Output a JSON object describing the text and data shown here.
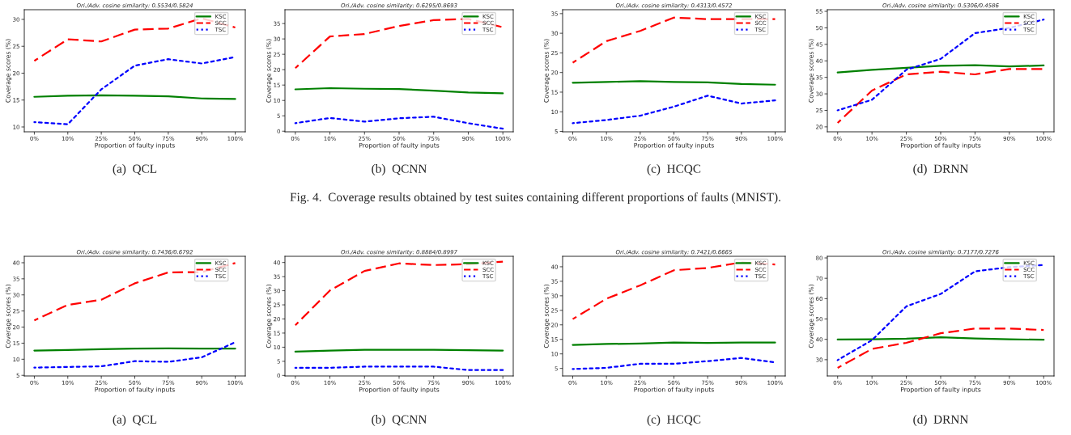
{
  "chart_data": [
    {
      "type": "line",
      "title": "Ori./Adv. cosine similarity: 0.5534/0.5824",
      "xlabel": "Proportion of faulty inputs",
      "ylabel": "Coverage scores (%)",
      "categories": [
        "0%",
        "10%",
        "25%",
        "50%",
        "75%",
        "90%",
        "100%"
      ],
      "ylim": [
        9.1,
        31.8
      ],
      "yticks": [
        10,
        15,
        20,
        25,
        30
      ],
      "legend": "top right",
      "grid": false,
      "annotations": [
        "(a)  QCL"
      ],
      "series": [
        {
          "name": "KSC",
          "color": "#008000",
          "line_style": "solid",
          "values": [
            15.6,
            15.8,
            15.9,
            15.8,
            15.7,
            15.3,
            15.2
          ]
        },
        {
          "name": "SCC",
          "color": "#ff0000",
          "line_style": "dashed",
          "values": [
            22.3,
            26.3,
            25.9,
            28.1,
            28.3,
            30.2,
            28.5
          ]
        },
        {
          "name": "TSC",
          "color": "#0000ff",
          "line_style": "dotted",
          "values": [
            10.9,
            10.5,
            17.0,
            21.4,
            22.6,
            21.8,
            23.0
          ]
        }
      ]
    },
    {
      "type": "line",
      "title": "Ori./Adv. cosine similarity: 0.6295/0.8693",
      "xlabel": "Proportion of faulty inputs",
      "ylabel": "Coverage scores (%)",
      "categories": [
        "0%",
        "10%",
        "25%",
        "50%",
        "75%",
        "90%",
        "100%"
      ],
      "ylim": [
        -0.2,
        39.5
      ],
      "yticks": [
        0,
        5,
        10,
        15,
        20,
        25,
        30,
        35
      ],
      "legend": "top right",
      "grid": false,
      "annotations": [
        "(b)  QCNN"
      ],
      "series": [
        {
          "name": "KSC",
          "color": "#008000",
          "line_style": "solid",
          "values": [
            13.6,
            14.0,
            13.8,
            13.7,
            13.2,
            12.6,
            12.3
          ]
        },
        {
          "name": "SCC",
          "color": "#ff0000",
          "line_style": "dashed",
          "values": [
            20.5,
            30.8,
            31.6,
            34.2,
            36.1,
            36.5,
            33.8
          ]
        },
        {
          "name": "TSC",
          "color": "#0000ff",
          "line_style": "dotted",
          "values": [
            2.6,
            4.3,
            3.1,
            4.2,
            4.7,
            2.6,
            0.8
          ]
        }
      ]
    },
    {
      "type": "line",
      "title": "Ori./Adv. cosine similarity: 0.4313/0.4572",
      "xlabel": "Proportion of faulty inputs",
      "ylabel": "Coverage scores (%)",
      "categories": [
        "0%",
        "10%",
        "25%",
        "50%",
        "75%",
        "90%",
        "100%"
      ],
      "ylim": [
        4.9,
        36.0
      ],
      "yticks": [
        5,
        10,
        15,
        20,
        25,
        30,
        35
      ],
      "legend": "top right",
      "grid": false,
      "annotations": [
        "(c)  HCQC"
      ],
      "series": [
        {
          "name": "KSC",
          "color": "#008000",
          "line_style": "solid",
          "values": [
            17.4,
            17.6,
            17.8,
            17.6,
            17.5,
            17.1,
            16.9
          ]
        },
        {
          "name": "SCC",
          "color": "#ff0000",
          "line_style": "dashed",
          "values": [
            22.5,
            28.0,
            30.6,
            34.0,
            33.6,
            33.6,
            33.6
          ]
        },
        {
          "name": "TSC",
          "color": "#0000ff",
          "line_style": "dotted",
          "values": [
            7.1,
            7.9,
            9.0,
            11.3,
            14.1,
            12.1,
            12.9
          ]
        }
      ]
    },
    {
      "type": "line",
      "title": "Ori./Adv. cosine similarity: 0.5306/0.4586",
      "xlabel": "Proportion of faulty inputs",
      "ylabel": "Coverage scores (%)",
      "categories": [
        "0%",
        "10%",
        "25%",
        "50%",
        "75%",
        "90%",
        "100%"
      ],
      "ylim": [
        18.5,
        55.5
      ],
      "yticks": [
        20,
        25,
        30,
        35,
        40,
        45,
        50,
        55
      ],
      "legend": "top right",
      "grid": false,
      "annotations": [
        "(d)  DRNN",
        "Fig. 4.  Coverage results obtained by test suites containing different proportions of faults (MNIST)."
      ],
      "series": [
        {
          "name": "KSC",
          "color": "#008000",
          "line_style": "solid",
          "values": [
            36.5,
            37.3,
            37.9,
            38.5,
            38.7,
            38.3,
            38.6
          ]
        },
        {
          "name": "SCC",
          "color": "#ff0000",
          "line_style": "dashed",
          "values": [
            21.2,
            31.0,
            35.9,
            36.7,
            35.9,
            37.5,
            37.5
          ]
        },
        {
          "name": "TSC",
          "color": "#0000ff",
          "line_style": "dotted",
          "values": [
            25.0,
            28.2,
            37.3,
            40.6,
            48.4,
            50.0,
            52.5
          ]
        }
      ]
    },
    {
      "type": "line",
      "title": "Ori./Adv. cosine similarity: 0.7436/0.6792",
      "xlabel": "Proportion of faulty inputs",
      "ylabel": "Coverage scores (%)",
      "categories": [
        "0%",
        "10%",
        "25%",
        "50%",
        "75%",
        "90%",
        "100%"
      ],
      "ylim": [
        4.8,
        42.0
      ],
      "yticks": [
        5,
        10,
        15,
        20,
        25,
        30,
        35,
        40
      ],
      "legend": "top right",
      "grid": false,
      "annotations": [
        "(a)  QCL"
      ],
      "series": [
        {
          "name": "KSC",
          "color": "#008000",
          "line_style": "solid",
          "values": [
            12.7,
            12.9,
            13.1,
            13.3,
            13.4,
            13.3,
            13.3
          ]
        },
        {
          "name": "SCC",
          "color": "#ff0000",
          "line_style": "dashed",
          "values": [
            22.1,
            26.9,
            28.5,
            33.6,
            37.0,
            37.1,
            39.9
          ]
        },
        {
          "name": "TSC",
          "color": "#0000ff",
          "line_style": "dotted",
          "values": [
            7.4,
            7.6,
            7.8,
            9.4,
            9.2,
            10.6,
            15.3
          ]
        }
      ]
    },
    {
      "type": "line",
      "title": "Ori./Adv. cosine similarity: 0.8884/0.8997",
      "xlabel": "Proportion of faulty inputs",
      "ylabel": "Coverage scores (%)",
      "categories": [
        "0%",
        "10%",
        "25%",
        "50%",
        "75%",
        "90%",
        "100%"
      ],
      "ylim": [
        -0.2,
        42.2
      ],
      "yticks": [
        0,
        5,
        10,
        15,
        20,
        25,
        30,
        35,
        40
      ],
      "legend": "top right",
      "grid": false,
      "annotations": [
        "(b)  QCNN"
      ],
      "series": [
        {
          "name": "KSC",
          "color": "#008000",
          "line_style": "solid",
          "values": [
            8.4,
            8.8,
            9.1,
            9.1,
            9.1,
            8.9,
            8.8
          ]
        },
        {
          "name": "SCC",
          "color": "#ff0000",
          "line_style": "dashed",
          "values": [
            17.8,
            30.1,
            37.0,
            39.7,
            39.1,
            39.4,
            40.3
          ]
        },
        {
          "name": "TSC",
          "color": "#0000ff",
          "line_style": "dotted",
          "values": [
            2.7,
            2.7,
            3.1,
            3.1,
            3.1,
            1.9,
            1.9
          ]
        }
      ]
    },
    {
      "type": "line",
      "title": "Ori./Adv. cosine similarity: 0.7421/0.6665",
      "xlabel": "Proportion of faulty inputs",
      "ylabel": "Coverage scores (%)",
      "categories": [
        "0%",
        "10%",
        "25%",
        "50%",
        "75%",
        "90%",
        "100%"
      ],
      "ylim": [
        2.4,
        43.6
      ],
      "yticks": [
        5,
        10,
        15,
        20,
        25,
        30,
        35,
        40
      ],
      "legend": "top right",
      "grid": false,
      "annotations": [
        "(c)  HCQC"
      ],
      "series": [
        {
          "name": "KSC",
          "color": "#008000",
          "line_style": "solid",
          "values": [
            13.1,
            13.4,
            13.6,
            13.9,
            13.8,
            13.9,
            13.9
          ]
        },
        {
          "name": "SCC",
          "color": "#ff0000",
          "line_style": "dashed",
          "values": [
            22.0,
            29.0,
            33.6,
            38.8,
            39.6,
            41.5,
            40.8
          ]
        },
        {
          "name": "TSC",
          "color": "#0000ff",
          "line_style": "dotted",
          "values": [
            4.8,
            5.2,
            6.6,
            6.6,
            7.5,
            8.6,
            7.1
          ]
        }
      ]
    },
    {
      "type": "line",
      "title": "Ori./Adv. cosine similarity: 0.7177/0.7276",
      "xlabel": "Proportion of faulty inputs",
      "ylabel": "Coverage scores (%)",
      "categories": [
        "0%",
        "10%",
        "25%",
        "50%",
        "75%",
        "90%",
        "100%"
      ],
      "ylim": [
        22.0,
        80.8
      ],
      "yticks": [
        30,
        40,
        50,
        60,
        70,
        80
      ],
      "legend": "top right",
      "grid": false,
      "annotations": [
        "(d)  DRNN"
      ],
      "series": [
        {
          "name": "KSC",
          "color": "#008000",
          "line_style": "solid",
          "values": [
            39.9,
            40.0,
            40.3,
            41.0,
            40.4,
            40.0,
            39.8
          ]
        },
        {
          "name": "SCC",
          "color": "#ff0000",
          "line_style": "dashed",
          "values": [
            26.0,
            35.3,
            38.3,
            43.0,
            45.3,
            45.3,
            44.6
          ]
        },
        {
          "name": "TSC",
          "color": "#0000ff",
          "line_style": "dotted",
          "values": [
            29.8,
            39.6,
            56.2,
            62.3,
            73.4,
            75.5,
            76.5
          ]
        }
      ]
    }
  ]
}
